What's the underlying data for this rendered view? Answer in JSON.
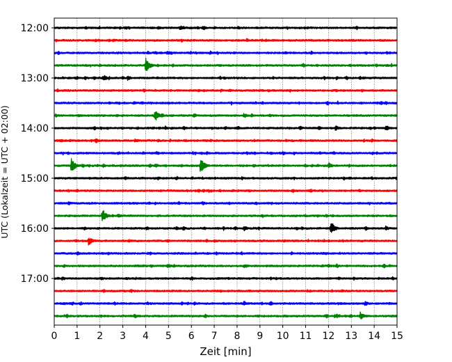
{
  "chart_data": {
    "type": "line",
    "subtype": "helicorder",
    "xlabel": "Zeit  [min]",
    "ylabel": "UTC (Lokalzeit = UTC + 02:00)",
    "xlim": [
      0,
      15
    ],
    "x_ticks": [
      0,
      1,
      2,
      3,
      4,
      5,
      6,
      7,
      8,
      9,
      10,
      11,
      12,
      13,
      14,
      15
    ],
    "x_tick_labels": [
      "0",
      "1",
      "2",
      "3",
      "4",
      "5",
      "6",
      "7",
      "8",
      "9",
      "10",
      "11",
      "12",
      "13",
      "14",
      "15"
    ],
    "grid": "vertical dotted at each minute",
    "trace_interval_minutes": 15,
    "start_time": "12:00",
    "trace_count": 24,
    "y_tick_labels": [
      {
        "row": 0,
        "label": "12:00"
      },
      {
        "row": 4,
        "label": "13:00"
      },
      {
        "row": 8,
        "label": "14:00"
      },
      {
        "row": 12,
        "label": "15:00"
      },
      {
        "row": 16,
        "label": "16:00"
      },
      {
        "row": 20,
        "label": "17:00"
      }
    ],
    "colors": [
      "#000000",
      "#ff0000",
      "#0000ff",
      "#008000"
    ],
    "events": [
      {
        "row": 3,
        "minute": 4.0,
        "amplitude": 11
      },
      {
        "row": 4,
        "minute": 2.2,
        "amplitude": 4
      },
      {
        "row": 4,
        "minute": 3.2,
        "amplitude": 4
      },
      {
        "row": 7,
        "minute": 4.4,
        "amplitude": 9
      },
      {
        "row": 7,
        "minute": 8.3,
        "amplitude": 4
      },
      {
        "row": 8,
        "minute": 12.3,
        "amplitude": 4
      },
      {
        "row": 8,
        "minute": 14.5,
        "amplitude": 5
      },
      {
        "row": 11,
        "minute": 0.75,
        "amplitude": 11
      },
      {
        "row": 11,
        "minute": 6.4,
        "amplitude": 12
      },
      {
        "row": 11,
        "minute": 12.0,
        "amplitude": 5
      },
      {
        "row": 10,
        "minute": 11.6,
        "amplitude": 3
      },
      {
        "row": 15,
        "minute": 2.1,
        "amplitude": 11
      },
      {
        "row": 16,
        "minute": 12.1,
        "amplitude": 11
      },
      {
        "row": 16,
        "minute": 8.3,
        "amplitude": 4
      },
      {
        "row": 16,
        "minute": 14.5,
        "amplitude": 4
      },
      {
        "row": 17,
        "minute": 1.5,
        "amplitude": 7
      },
      {
        "row": 22,
        "minute": 8.3,
        "amplitude": 4
      },
      {
        "row": 22,
        "minute": 13.6,
        "amplitude": 4
      },
      {
        "row": 23,
        "minute": 13.4,
        "amplitude": 7
      }
    ]
  }
}
